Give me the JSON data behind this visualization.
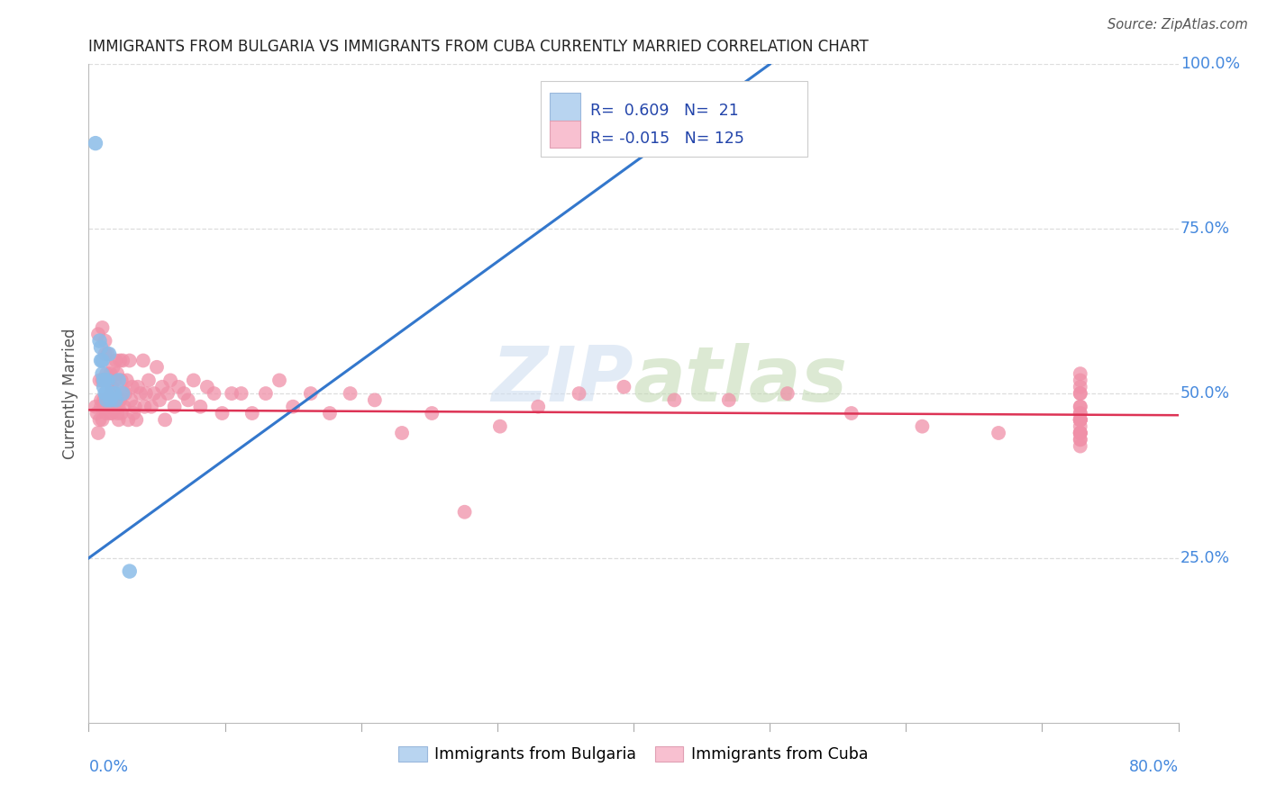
{
  "title": "IMMIGRANTS FROM BULGARIA VS IMMIGRANTS FROM CUBA CURRENTLY MARRIED CORRELATION CHART",
  "source": "Source: ZipAtlas.com",
  "ylabel": "Currently Married",
  "xmin": 0.0,
  "xmax": 0.8,
  "ymin": 0.0,
  "ymax": 1.0,
  "bulgaria_R": 0.609,
  "bulgaria_N": 21,
  "cuba_R": -0.015,
  "cuba_N": 125,
  "bulgaria_scatter_color": "#8bbce8",
  "cuba_scatter_color": "#f090a8",
  "bulgaria_legend_color": "#b8d4f0",
  "cuba_legend_color": "#f8c0d0",
  "bulgaria_line_color": "#3377cc",
  "cuba_line_color": "#dd3355",
  "watermark_color": "#d0dff0",
  "title_color": "#222222",
  "axis_label_color": "#4488dd",
  "grid_color": "#dddddd",
  "bulgaria_line_x0": 0.0,
  "bulgaria_line_y0": 0.25,
  "bulgaria_line_x1": 0.5,
  "bulgaria_line_y1": 1.0,
  "cuba_line_x0": 0.0,
  "cuba_line_y0": 0.475,
  "cuba_line_x1": 0.8,
  "cuba_line_y1": 0.467,
  "bulgaria_points_x": [
    0.005,
    0.008,
    0.009,
    0.009,
    0.01,
    0.01,
    0.011,
    0.011,
    0.012,
    0.012,
    0.013,
    0.013,
    0.014,
    0.015,
    0.016,
    0.018,
    0.019,
    0.02,
    0.022,
    0.025,
    0.03
  ],
  "bulgaria_points_y": [
    0.88,
    0.58,
    0.57,
    0.55,
    0.55,
    0.53,
    0.52,
    0.51,
    0.52,
    0.5,
    0.5,
    0.49,
    0.52,
    0.56,
    0.49,
    0.5,
    0.5,
    0.49,
    0.52,
    0.5,
    0.23
  ],
  "cuba_points_x": [
    0.005,
    0.006,
    0.007,
    0.007,
    0.008,
    0.008,
    0.009,
    0.009,
    0.01,
    0.01,
    0.01,
    0.011,
    0.011,
    0.012,
    0.012,
    0.013,
    0.013,
    0.013,
    0.014,
    0.014,
    0.015,
    0.015,
    0.016,
    0.016,
    0.016,
    0.017,
    0.017,
    0.018,
    0.018,
    0.019,
    0.019,
    0.02,
    0.02,
    0.021,
    0.021,
    0.022,
    0.022,
    0.023,
    0.023,
    0.024,
    0.024,
    0.025,
    0.025,
    0.026,
    0.027,
    0.028,
    0.029,
    0.03,
    0.031,
    0.032,
    0.033,
    0.034,
    0.035,
    0.036,
    0.038,
    0.04,
    0.041,
    0.042,
    0.044,
    0.046,
    0.048,
    0.05,
    0.052,
    0.054,
    0.056,
    0.058,
    0.06,
    0.063,
    0.066,
    0.07,
    0.073,
    0.077,
    0.082,
    0.087,
    0.092,
    0.098,
    0.105,
    0.112,
    0.12,
    0.13,
    0.14,
    0.15,
    0.163,
    0.177,
    0.192,
    0.21,
    0.23,
    0.252,
    0.276,
    0.302,
    0.33,
    0.36,
    0.393,
    0.43,
    0.47,
    0.513,
    0.56,
    0.612,
    0.668,
    0.728,
    0.728,
    0.728,
    0.728,
    0.728,
    0.728,
    0.728,
    0.728,
    0.728,
    0.728,
    0.728,
    0.728,
    0.728,
    0.728,
    0.728,
    0.728,
    0.728,
    0.728,
    0.728,
    0.728,
    0.728,
    0.728
  ],
  "cuba_points_y": [
    0.48,
    0.47,
    0.59,
    0.44,
    0.52,
    0.46,
    0.49,
    0.48,
    0.6,
    0.52,
    0.46,
    0.49,
    0.48,
    0.58,
    0.56,
    0.47,
    0.53,
    0.49,
    0.56,
    0.52,
    0.48,
    0.52,
    0.47,
    0.5,
    0.53,
    0.51,
    0.47,
    0.54,
    0.48,
    0.52,
    0.5,
    0.55,
    0.49,
    0.53,
    0.47,
    0.48,
    0.46,
    0.55,
    0.49,
    0.52,
    0.47,
    0.5,
    0.55,
    0.48,
    0.5,
    0.52,
    0.46,
    0.55,
    0.49,
    0.51,
    0.47,
    0.48,
    0.46,
    0.51,
    0.5,
    0.55,
    0.48,
    0.5,
    0.52,
    0.48,
    0.5,
    0.54,
    0.49,
    0.51,
    0.46,
    0.5,
    0.52,
    0.48,
    0.51,
    0.5,
    0.49,
    0.52,
    0.48,
    0.51,
    0.5,
    0.47,
    0.5,
    0.5,
    0.47,
    0.5,
    0.52,
    0.48,
    0.5,
    0.47,
    0.5,
    0.49,
    0.44,
    0.47,
    0.32,
    0.45,
    0.48,
    0.5,
    0.51,
    0.49,
    0.49,
    0.5,
    0.47,
    0.45,
    0.44,
    0.51,
    0.52,
    0.53,
    0.5,
    0.47,
    0.44,
    0.46,
    0.46,
    0.48,
    0.46,
    0.5,
    0.47,
    0.45,
    0.44,
    0.43,
    0.46,
    0.44,
    0.43,
    0.42,
    0.46,
    0.44,
    0.48
  ]
}
